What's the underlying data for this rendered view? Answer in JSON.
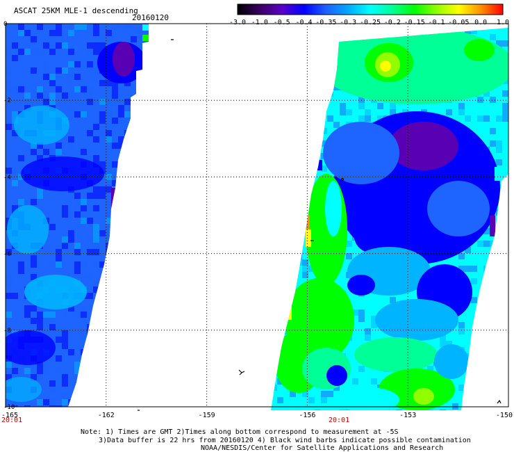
{
  "header": {
    "title": "ASCAT 25KM MLE-1 descending",
    "date": "20160120"
  },
  "colorbar": {
    "labels": [
      "-3.0",
      "-1.0",
      "-0.5",
      "-0.4",
      "-0.35",
      "-0.3",
      "-0.25",
      "-0.2",
      "-0.15",
      "-0.1",
      "-0.05",
      "0.0",
      "1.0"
    ],
    "stops": [
      "#000000",
      "#3a0060",
      "#5a00c8",
      "#0000ff",
      "#1e60ff",
      "#00a8ff",
      "#00ffff",
      "#00ff96",
      "#00ff00",
      "#90ff00",
      "#ffff00",
      "#ff9000",
      "#ff0000"
    ]
  },
  "map": {
    "lat_labels": [
      "0",
      "-2",
      "-4",
      "-6",
      "-8",
      "-10"
    ],
    "lon_labels": [
      "-165",
      "-162",
      "-159",
      "-156",
      "-153",
      "-150"
    ],
    "times": [
      "20:01",
      "20:01"
    ],
    "time_color": "#cc0000",
    "ocean_color": "#ffffff",
    "swath_palette": {
      "deep": "#5a00b4",
      "blue": "#0000ff",
      "mid_blue": "#1e64ff",
      "light_blue": "#00b4ff",
      "cyan": "#00ffff",
      "green": "#00ff00",
      "yellow": "#ffff00",
      "orange": "#ff9000"
    }
  },
  "notes": [
    "Note: 1) Times are GMT 2)Times along bottom correspond to measurement at -5S",
    "3)Data buffer is 22 hrs from 20160120 4) Black wind barbs indicate possible contamination",
    "NOAA/NESDIS/Center for Satellite Applications and Research"
  ]
}
